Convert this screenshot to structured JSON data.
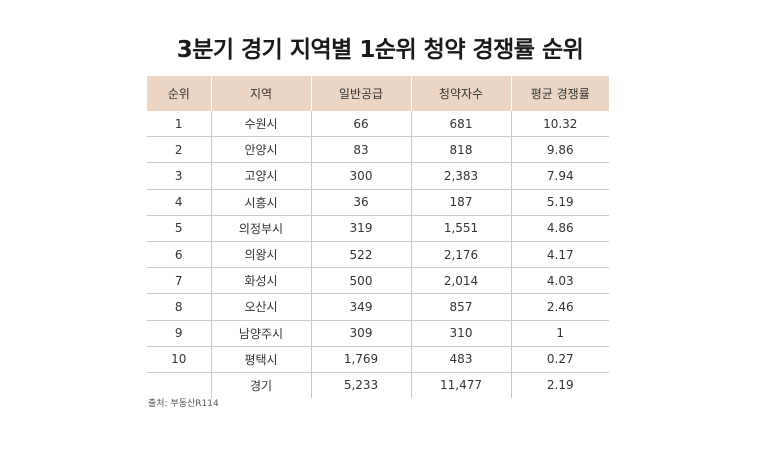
{
  "title": "3분기 경기 지역별 1순위 청약 경쟁률 순위",
  "table": {
    "headers": [
      "순위",
      "지역",
      "일반공급",
      "청약자수",
      "평균 경쟁률"
    ],
    "rows": [
      [
        "1",
        "수원시",
        "66",
        "681",
        "10.32"
      ],
      [
        "2",
        "안양시",
        "83",
        "818",
        "9.86"
      ],
      [
        "3",
        "고양시",
        "300",
        "2,383",
        "7.94"
      ],
      [
        "4",
        "시흥시",
        "36",
        "187",
        "5.19"
      ],
      [
        "5",
        "의정부시",
        "319",
        "1,551",
        "4.86"
      ],
      [
        "6",
        "의왕시",
        "522",
        "2,176",
        "4.17"
      ],
      [
        "7",
        "화성시",
        "500",
        "2,014",
        "4.03"
      ],
      [
        "8",
        "오산시",
        "349",
        "857",
        "2.46"
      ],
      [
        "9",
        "남양주시",
        "309",
        "310",
        "1"
      ],
      [
        "10",
        "평택시",
        "1,769",
        "483",
        "0.27"
      ],
      [
        "",
        "경기",
        "5,233",
        "11,477",
        "2.19"
      ]
    ]
  },
  "source": "출처: 부동산R114",
  "colors": {
    "header_bg": "#ecd6c3",
    "border": "#c9c9c9"
  }
}
